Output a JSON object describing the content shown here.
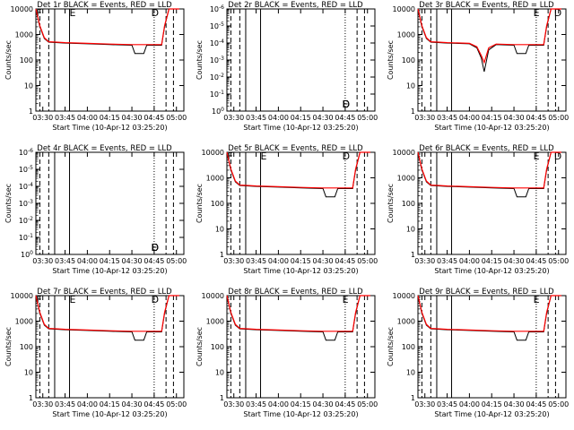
{
  "panel_titles": [
    "Det 1r  BLACK = Events, RED = LLD",
    "Det 2r  BLACK = Events, RED = LLD",
    "Det 3r  BLACK = Events, RED = LLD",
    "Det 4r  BLACK = Events, RED = LLD",
    "Det 5r  BLACK = Events, RED = LLD",
    "Det 6r  BLACK = Events, RED = LLD",
    "Det 7r  BLACK = Events, RED = LLD",
    "Det 8r  BLACK = Events, RED = LLD",
    "Det 9r  BLACK = Events, RED = LLD"
  ],
  "colors": {
    "events": "#000000",
    "lld": "#ff0000",
    "background": "#ffffff"
  },
  "chart_data": [
    {
      "type": "line",
      "title": "Det 1r  BLACK = Events, RED = LLD",
      "xlabel": "Start Time (10-Apr-12 03:25:20)",
      "ylabel": "Counts/sec",
      "x_tick_labels": [
        "03:30",
        "03:45",
        "04:00",
        "04:15",
        "04:30",
        "04:45",
        "05:00"
      ],
      "y_tick_labels": [
        "1",
        "10",
        "100",
        "1000",
        "10000"
      ],
      "y_scale": "log",
      "ylim": [
        1,
        10000
      ],
      "xlim": [
        "03:25:20",
        "05:05:00"
      ],
      "marker_labels": [
        "F",
        "E",
        "D"
      ],
      "series": [
        {
          "color": "#000000",
          "x": [
            "03:25:20",
            "03:28",
            "03:31",
            "03:34",
            "03:40",
            "03:45",
            "04:00",
            "04:15",
            "04:30",
            "04:32",
            "04:35",
            "04:38",
            "04:40",
            "04:50",
            "04:52",
            "04:55",
            "04:58",
            "05:02"
          ],
          "y": [
            10000,
            2000,
            700,
            500,
            480,
            460,
            430,
            400,
            380,
            180,
            180,
            180,
            380,
            380,
            2000,
            10000,
            10000,
            10000
          ]
        },
        {
          "color": "#ff0000",
          "x": [
            "03:25:20",
            "03:28",
            "03:31",
            "03:34",
            "03:40",
            "03:45",
            "04:00",
            "04:15",
            "04:30",
            "04:40",
            "04:50",
            "04:52",
            "04:55",
            "04:58",
            "05:02"
          ],
          "y": [
            10000,
            2200,
            750,
            520,
            500,
            480,
            450,
            420,
            400,
            400,
            400,
            2200,
            10000,
            10000,
            10000
          ]
        }
      ]
    },
    {
      "type": "line",
      "title": "Det 2r  BLACK = Events, RED = LLD",
      "xlabel": "Start Time (10-Apr-12 03:25:20)",
      "ylabel": "Counts/sec",
      "x_tick_labels": [
        "03:30",
        "03:45",
        "04:00",
        "04:15",
        "04:30",
        "04:45",
        "05:00"
      ],
      "y_tick_labels": [
        "10^0",
        "10^-1",
        "10^-2",
        "10^-3",
        "10^-4",
        "10^-5",
        "10^-6"
      ],
      "y_scale": "log",
      "ylim": [
        1e-06,
        1
      ],
      "xlim": [
        "03:25:20",
        "05:05:00"
      ],
      "marker_labels": [
        "D",
        "F",
        "E",
        "D"
      ],
      "series": []
    },
    {
      "type": "line",
      "title": "Det 3r  BLACK = Events, RED = LLD",
      "xlabel": "Start Time (10-Apr-12 03:25:20)",
      "ylabel": "Counts/sec",
      "x_tick_labels": [
        "03:30",
        "03:45",
        "04:00",
        "04:15",
        "04:30",
        "04:45",
        "05:00"
      ],
      "y_tick_labels": [
        "1",
        "10",
        "100",
        "1000",
        "10000"
      ],
      "y_scale": "log",
      "ylim": [
        1,
        10000
      ],
      "xlim": [
        "03:25:20",
        "05:05:00"
      ],
      "marker_labels": [
        "E",
        "D"
      ],
      "series": [
        {
          "color": "#000000",
          "x": [
            "03:25:20",
            "03:28",
            "03:31",
            "03:34",
            "03:40",
            "03:45",
            "04:00",
            "04:05",
            "04:08",
            "04:10",
            "04:13",
            "04:18",
            "04:30",
            "04:32",
            "04:35",
            "04:38",
            "04:40",
            "04:50",
            "04:52",
            "04:55",
            "04:58",
            "05:02"
          ],
          "y": [
            10000,
            2000,
            700,
            500,
            480,
            460,
            430,
            300,
            120,
            35,
            250,
            400,
            380,
            180,
            180,
            180,
            380,
            380,
            2000,
            10000,
            10000,
            10000
          ]
        },
        {
          "color": "#ff0000",
          "x": [
            "03:25:20",
            "03:28",
            "03:31",
            "03:34",
            "03:40",
            "03:45",
            "04:00",
            "04:05",
            "04:08",
            "04:10",
            "04:13",
            "04:18",
            "04:30",
            "04:40",
            "04:50",
            "04:52",
            "04:55",
            "04:58",
            "05:02"
          ],
          "y": [
            10000,
            2200,
            750,
            520,
            500,
            480,
            450,
            330,
            150,
            80,
            300,
            420,
            400,
            400,
            400,
            2200,
            10000,
            10000,
            10000
          ]
        }
      ]
    },
    {
      "type": "line",
      "title": "Det 4r  BLACK = Events, RED = LLD",
      "xlabel": "Start Time (10-Apr-12 03:25:20)",
      "ylabel": "Counts/sec",
      "x_tick_labels": [
        "03:30",
        "03:45",
        "04:00",
        "04:15",
        "04:30",
        "04:45",
        "05:00"
      ],
      "y_tick_labels": [
        "10^0",
        "10^-1",
        "10^-2",
        "10^-3",
        "10^-4",
        "10^-5",
        "10^-6"
      ],
      "y_scale": "log",
      "ylim": [
        1e-06,
        1
      ],
      "xlim": [
        "03:25:20",
        "05:05:00"
      ],
      "marker_labels": [
        "D",
        "F",
        "E",
        "D"
      ],
      "series": []
    },
    {
      "type": "line",
      "title": "Det 5r  BLACK = Events, RED = LLD",
      "xlabel": "Start Time (10-Apr-12 03:25:20)",
      "ylabel": "Counts/sec",
      "x_tick_labels": [
        "03:30",
        "03:45",
        "04:00",
        "04:15",
        "04:30",
        "04:45",
        "05:00"
      ],
      "y_tick_labels": [
        "1",
        "10",
        "100",
        "1000",
        "10000"
      ],
      "y_scale": "log",
      "ylim": [
        1,
        10000
      ],
      "xlim": [
        "03:25:20",
        "05:05:00"
      ],
      "marker_labels": [
        "F",
        "E",
        "D"
      ],
      "series": [
        {
          "color": "#000000",
          "x": [
            "03:25:20",
            "03:28",
            "03:31",
            "03:34",
            "03:40",
            "03:45",
            "04:00",
            "04:15",
            "04:30",
            "04:32",
            "04:35",
            "04:38",
            "04:40",
            "04:50",
            "04:52",
            "04:55",
            "04:58",
            "05:02"
          ],
          "y": [
            10000,
            2000,
            700,
            500,
            480,
            460,
            430,
            400,
            380,
            180,
            180,
            180,
            380,
            380,
            2000,
            10000,
            10000,
            10000
          ]
        },
        {
          "color": "#ff0000",
          "x": [
            "03:25:20",
            "03:28",
            "03:31",
            "03:34",
            "03:40",
            "03:45",
            "04:00",
            "04:15",
            "04:30",
            "04:40",
            "04:50",
            "04:52",
            "04:55",
            "04:58",
            "05:02"
          ],
          "y": [
            10000,
            2200,
            750,
            520,
            500,
            480,
            450,
            420,
            400,
            400,
            400,
            2200,
            10000,
            10000,
            10000
          ]
        }
      ]
    },
    {
      "type": "line",
      "title": "Det 6r  BLACK = Events, RED = LLD",
      "xlabel": "Start Time (10-Apr-12 03:25:20)",
      "ylabel": "Counts/sec",
      "x_tick_labels": [
        "03:30",
        "03:45",
        "04:00",
        "04:15",
        "04:30",
        "04:45",
        "05:00"
      ],
      "y_tick_labels": [
        "1",
        "10",
        "100",
        "1000",
        "10000"
      ],
      "y_scale": "log",
      "ylim": [
        1,
        10000
      ],
      "xlim": [
        "03:25:20",
        "05:05:00"
      ],
      "marker_labels": [
        "E",
        "D"
      ],
      "series": [
        {
          "color": "#000000",
          "x": [
            "03:25:20",
            "03:28",
            "03:31",
            "03:34",
            "03:40",
            "03:45",
            "04:00",
            "04:15",
            "04:30",
            "04:32",
            "04:35",
            "04:38",
            "04:40",
            "04:50",
            "04:52",
            "04:55",
            "04:58",
            "05:02"
          ],
          "y": [
            10000,
            2000,
            700,
            500,
            480,
            460,
            430,
            400,
            380,
            180,
            180,
            180,
            380,
            380,
            2000,
            10000,
            10000,
            10000
          ]
        },
        {
          "color": "#ff0000",
          "x": [
            "03:25:20",
            "03:28",
            "03:31",
            "03:34",
            "03:40",
            "03:45",
            "04:00",
            "04:15",
            "04:30",
            "04:40",
            "04:50",
            "04:52",
            "04:55",
            "04:58",
            "05:02"
          ],
          "y": [
            10000,
            2200,
            750,
            520,
            500,
            480,
            450,
            420,
            400,
            400,
            400,
            2200,
            10000,
            10000,
            10000
          ]
        }
      ]
    },
    {
      "type": "line",
      "title": "Det 7r  BLACK = Events, RED = LLD",
      "xlabel": "Start Time (10-Apr-12 03:25:20)",
      "ylabel": "Counts/sec",
      "x_tick_labels": [
        "03:30",
        "03:45",
        "04:00",
        "04:15",
        "04:30",
        "04:45",
        "05:00"
      ],
      "y_tick_labels": [
        "1",
        "10",
        "100",
        "1000",
        "10000"
      ],
      "y_scale": "log",
      "ylim": [
        1,
        10000
      ],
      "xlim": [
        "03:25:20",
        "05:05:00"
      ],
      "marker_labels": [
        "F",
        "E",
        "D"
      ],
      "series": [
        {
          "color": "#000000",
          "x": [
            "03:25:20",
            "03:28",
            "03:31",
            "03:34",
            "03:40",
            "03:45",
            "04:00",
            "04:15",
            "04:30",
            "04:32",
            "04:35",
            "04:38",
            "04:40",
            "04:50",
            "04:52",
            "04:55",
            "04:58",
            "05:02"
          ],
          "y": [
            10000,
            2000,
            700,
            500,
            480,
            460,
            430,
            400,
            380,
            180,
            180,
            180,
            380,
            380,
            2000,
            10000,
            10000,
            10000
          ]
        },
        {
          "color": "#ff0000",
          "x": [
            "03:25:20",
            "03:28",
            "03:31",
            "03:34",
            "03:40",
            "03:45",
            "04:00",
            "04:15",
            "04:30",
            "04:40",
            "04:50",
            "04:52",
            "04:55",
            "04:58",
            "05:02"
          ],
          "y": [
            10000,
            2200,
            750,
            520,
            500,
            480,
            450,
            420,
            400,
            400,
            400,
            2200,
            10000,
            10000,
            10000
          ]
        }
      ]
    },
    {
      "type": "line",
      "title": "Det 8r  BLACK = Events, RED = LLD",
      "xlabel": "Start Time (10-Apr-12 03:25:20)",
      "ylabel": "Counts/sec",
      "x_tick_labels": [
        "03:30",
        "03:45",
        "04:00",
        "04:15",
        "04:30",
        "04:45",
        "05:00"
      ],
      "y_tick_labels": [
        "1",
        "10",
        "100",
        "1000",
        "10000"
      ],
      "y_scale": "log",
      "ylim": [
        1,
        10000
      ],
      "xlim": [
        "03:25:20",
        "05:05:00"
      ],
      "marker_labels": [
        "E"
      ],
      "series": [
        {
          "color": "#000000",
          "x": [
            "03:25:20",
            "03:28",
            "03:31",
            "03:34",
            "03:40",
            "03:45",
            "04:00",
            "04:15",
            "04:30",
            "04:32",
            "04:35",
            "04:38",
            "04:40",
            "04:50",
            "04:52",
            "04:55",
            "04:58",
            "05:02"
          ],
          "y": [
            10000,
            2000,
            700,
            500,
            480,
            460,
            430,
            400,
            380,
            180,
            180,
            180,
            380,
            380,
            2000,
            10000,
            10000,
            10000
          ]
        },
        {
          "color": "#ff0000",
          "x": [
            "03:25:20",
            "03:28",
            "03:31",
            "03:34",
            "03:40",
            "03:45",
            "04:00",
            "04:15",
            "04:30",
            "04:40",
            "04:50",
            "04:52",
            "04:55",
            "04:58",
            "05:02"
          ],
          "y": [
            10000,
            2200,
            750,
            520,
            500,
            480,
            450,
            420,
            400,
            400,
            400,
            2200,
            10000,
            10000,
            10000
          ]
        }
      ]
    },
    {
      "type": "line",
      "title": "Det 9r  BLACK = Events, RED = LLD",
      "xlabel": "Start Time (10-Apr-12 03:25:20)",
      "ylabel": "Counts/sec",
      "x_tick_labels": [
        "03:30",
        "03:45",
        "04:00",
        "04:15",
        "04:30",
        "04:45",
        "05:00"
      ],
      "y_tick_labels": [
        "1",
        "10",
        "100",
        "1000",
        "10000"
      ],
      "y_scale": "log",
      "ylim": [
        1,
        10000
      ],
      "xlim": [
        "03:25:20",
        "05:05:00"
      ],
      "marker_labels": [
        "E"
      ],
      "series": [
        {
          "color": "#000000",
          "x": [
            "03:25:20",
            "03:28",
            "03:31",
            "03:34",
            "03:40",
            "03:45",
            "04:00",
            "04:15",
            "04:30",
            "04:32",
            "04:35",
            "04:38",
            "04:40",
            "04:50",
            "04:52",
            "04:55",
            "04:58",
            "05:02"
          ],
          "y": [
            10000,
            2000,
            700,
            500,
            480,
            460,
            430,
            400,
            380,
            180,
            180,
            180,
            380,
            380,
            2000,
            10000,
            10000,
            10000
          ]
        },
        {
          "color": "#ff0000",
          "x": [
            "03:25:20",
            "03:28",
            "03:31",
            "03:34",
            "03:40",
            "03:45",
            "04:00",
            "04:15",
            "04:30",
            "04:40",
            "04:50",
            "04:52",
            "04:55",
            "04:58",
            "05:02"
          ],
          "y": [
            10000,
            2200,
            750,
            520,
            500,
            480,
            450,
            420,
            400,
            400,
            400,
            2200,
            10000,
            10000,
            10000
          ]
        }
      ]
    }
  ]
}
